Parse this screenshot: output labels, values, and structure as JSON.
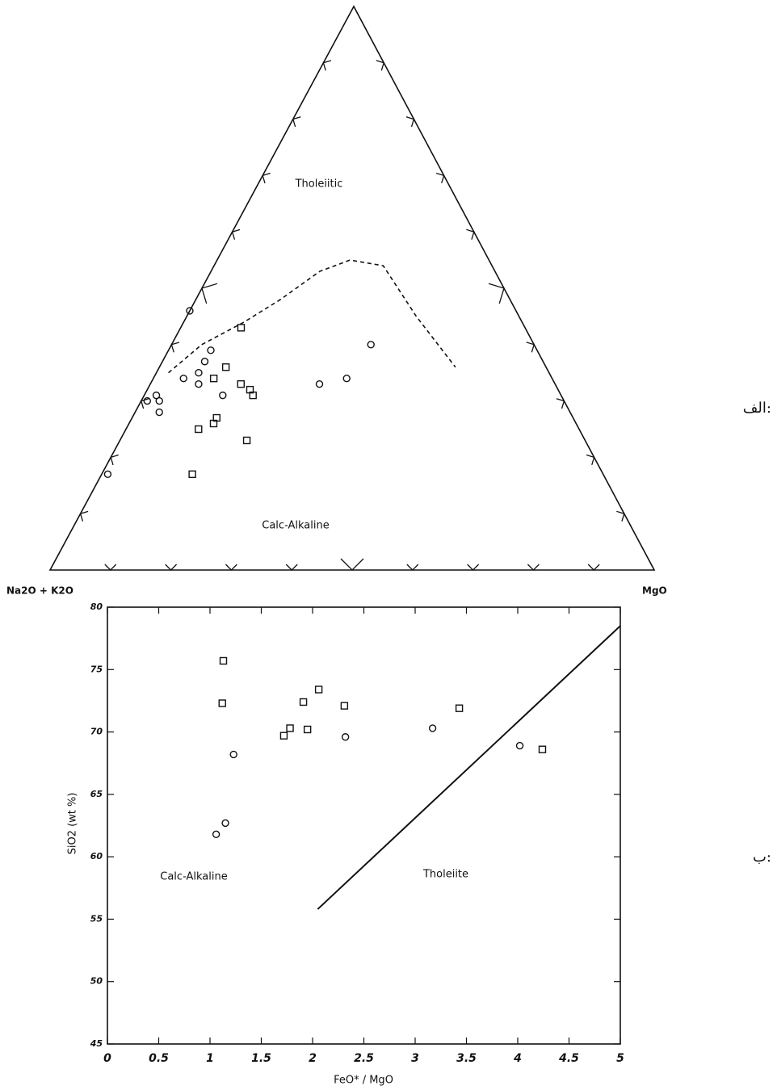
{
  "chart_data": [
    {
      "type": "ternary",
      "panel_label": "الف:",
      "left_label": "Na2O + K2O",
      "right_label": "MgO",
      "annotations": [
        "Tholeiitic",
        "Calc-Alkaline"
      ],
      "ticks": [
        10,
        20,
        30,
        40,
        50,
        60,
        70,
        80,
        90
      ],
      "boundary": {
        "a": [
          63,
          55,
          46,
          38,
          29,
          23,
          18,
          17,
          15
        ],
        "f": [
          35,
          40,
          44,
          48,
          53,
          55,
          54,
          45,
          36
        ],
        "m": [
          2,
          5,
          10,
          14,
          18,
          22,
          28,
          38,
          49
        ]
      },
      "series": [
        {
          "marker": "circle",
          "color": "#111111",
          "a": [
            54,
            54,
            56,
            61,
            58,
            59,
            56,
            69,
            67,
            67,
            68,
            82,
            39,
            34,
            27
          ],
          "f": [
            46,
            39,
            37,
            34,
            35,
            33,
            31,
            30,
            31,
            30,
            28,
            17,
            33,
            34,
            40
          ],
          "m": [
            0,
            7,
            7,
            5,
            7,
            8,
            13,
            1,
            2,
            3,
            4,
            1,
            28,
            32,
            33
          ]
        },
        {
          "marker": "square",
          "color": "#111111",
          "a": [
            47,
            53,
            56,
            52,
            51,
            51,
            59,
            60,
            63,
            56,
            68
          ],
          "f": [
            43,
            36,
            34,
            33,
            32,
            31,
            27,
            26,
            25,
            23,
            17
          ],
          "m": [
            10,
            11,
            10,
            15,
            17,
            18,
            14,
            14,
            12,
            21,
            15
          ]
        }
      ]
    },
    {
      "type": "scatter",
      "panel_label": "ب:",
      "xlabel": "FeO* / MgO",
      "ylabel": "SiO2 (wt %)",
      "annotations": [
        "Calc-Alkaline",
        "Tholeiite"
      ],
      "xlim": [
        0,
        5
      ],
      "ylim": [
        45,
        80
      ],
      "xticks": [
        0,
        0.5,
        1,
        1.5,
        2,
        2.5,
        3,
        3.5,
        4,
        4.5,
        5
      ],
      "yticks": [
        45,
        50,
        55,
        60,
        65,
        70,
        75,
        80
      ],
      "line": {
        "x": [
          2.05,
          5
        ],
        "y": [
          55.8,
          78.5
        ]
      },
      "series": [
        {
          "marker": "circle",
          "color": "#111111",
          "x": [
            1.06,
            1.15,
            1.23,
            2.32,
            3.17,
            4.02
          ],
          "y": [
            61.8,
            62.7,
            68.2,
            69.6,
            70.3,
            68.9
          ]
        },
        {
          "marker": "square",
          "color": "#111111",
          "x": [
            1.13,
            1.12,
            1.72,
            1.78,
            1.91,
            1.95,
            2.06,
            2.31,
            3.43,
            4.24
          ],
          "y": [
            75.7,
            72.3,
            69.7,
            70.3,
            72.4,
            70.2,
            73.4,
            72.1,
            71.9,
            68.6
          ]
        }
      ]
    }
  ]
}
